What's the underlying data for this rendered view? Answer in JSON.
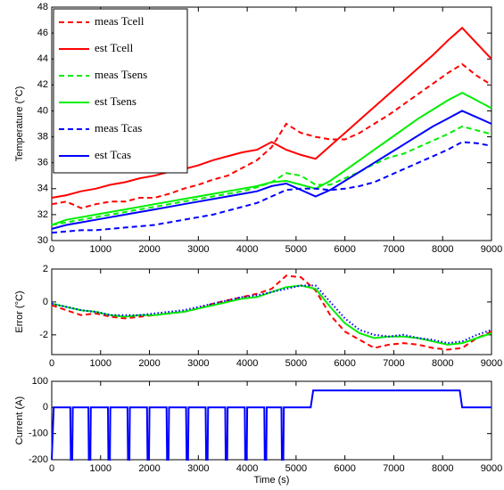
{
  "chart_data": [
    {
      "type": "line",
      "ylabel": "Temperature (°C)",
      "x": [
        0,
        300,
        600,
        900,
        1200,
        1500,
        1800,
        2100,
        2400,
        2700,
        3000,
        3300,
        3600,
        3900,
        4200,
        4500,
        4800,
        5100,
        5400,
        5700,
        6000,
        6300,
        6600,
        6900,
        7200,
        7500,
        7800,
        8100,
        8400,
        8700,
        9000
      ],
      "xlim": [
        0,
        9000
      ],
      "xticks": [
        0,
        1000,
        2000,
        3000,
        4000,
        5000,
        6000,
        7000,
        8000,
        9000
      ],
      "ylim": [
        30,
        48
      ],
      "yticks": [
        30,
        32,
        34,
        36,
        38,
        40,
        42,
        44,
        46,
        48
      ],
      "legend": "upper left",
      "series": [
        {
          "name": "meas Tcell",
          "color": "#ff0000",
          "linestyle": "dashed",
          "values": [
            32.8,
            33.0,
            32.5,
            32.8,
            33.0,
            33.0,
            33.3,
            33.3,
            33.6,
            34.0,
            34.3,
            34.7,
            35.0,
            35.6,
            36.2,
            37.2,
            39.0,
            38.3,
            38.0,
            37.8,
            37.8,
            38.3,
            39.0,
            39.7,
            40.5,
            41.3,
            42.1,
            42.9,
            43.6,
            42.7,
            42.0
          ]
        },
        {
          "name": "est Tcell",
          "color": "#ff0000",
          "linestyle": "solid",
          "values": [
            33.3,
            33.5,
            33.8,
            34.0,
            34.3,
            34.5,
            34.8,
            35.0,
            35.3,
            35.5,
            35.8,
            36.2,
            36.5,
            36.8,
            37.0,
            37.6,
            37.0,
            36.6,
            36.3,
            37.3,
            38.3,
            39.3,
            40.3,
            41.3,
            42.3,
            43.3,
            44.3,
            45.4,
            46.4,
            45.2,
            44.0
          ]
        },
        {
          "name": "meas Tsens",
          "color": "#00ee00",
          "linestyle": "dashed",
          "values": [
            31.2,
            31.4,
            31.6,
            31.8,
            32.0,
            32.2,
            32.4,
            32.6,
            32.8,
            33.0,
            33.2,
            33.4,
            33.6,
            33.8,
            34.1,
            34.5,
            35.2,
            35.0,
            34.3,
            34.3,
            34.8,
            35.3,
            35.9,
            36.4,
            36.7,
            37.2,
            37.7,
            38.2,
            38.8,
            38.5,
            38.2
          ]
        },
        {
          "name": "est Tsens",
          "color": "#00ee00",
          "linestyle": "solid",
          "values": [
            31.2,
            31.6,
            31.8,
            32.0,
            32.2,
            32.4,
            32.6,
            32.8,
            33.0,
            33.2,
            33.4,
            33.6,
            33.8,
            34.0,
            34.2,
            34.5,
            34.6,
            34.3,
            34.0,
            34.6,
            35.4,
            36.2,
            37.0,
            37.8,
            38.6,
            39.4,
            40.1,
            40.8,
            41.4,
            40.8,
            40.2
          ]
        },
        {
          "name": "meas Tcas",
          "color": "#0000ff",
          "linestyle": "dashed",
          "values": [
            30.6,
            30.7,
            30.8,
            30.8,
            30.9,
            31.0,
            31.1,
            31.2,
            31.4,
            31.6,
            31.8,
            32.0,
            32.3,
            32.6,
            32.9,
            33.4,
            33.9,
            34.0,
            34.0,
            33.9,
            34.0,
            34.2,
            34.5,
            35.0,
            35.5,
            36.0,
            36.5,
            37.0,
            37.6,
            37.5,
            37.3
          ]
        },
        {
          "name": "est Tcas",
          "color": "#0000ff",
          "linestyle": "solid",
          "values": [
            30.9,
            31.2,
            31.4,
            31.6,
            31.8,
            32.0,
            32.2,
            32.4,
            32.6,
            32.8,
            33.0,
            33.2,
            33.4,
            33.6,
            33.8,
            34.2,
            34.4,
            33.9,
            33.4,
            33.9,
            34.6,
            35.3,
            36.0,
            36.7,
            37.4,
            38.1,
            38.8,
            39.4,
            40.0,
            39.5,
            39.0
          ]
        }
      ]
    },
    {
      "type": "line",
      "ylabel": "Error (°C)",
      "x": [
        0,
        300,
        600,
        900,
        1200,
        1500,
        1800,
        2100,
        2400,
        2700,
        3000,
        3300,
        3600,
        3900,
        4200,
        4500,
        4800,
        5100,
        5400,
        5700,
        6000,
        6300,
        6600,
        6900,
        7200,
        7500,
        7800,
        8100,
        8400,
        8700,
        9000
      ],
      "xlim": [
        0,
        9000
      ],
      "xticks": [
        0,
        1000,
        2000,
        3000,
        4000,
        5000,
        6000,
        7000,
        8000,
        9000
      ],
      "ylim": [
        -3.2,
        2
      ],
      "yticks": [
        -2,
        0,
        2
      ],
      "series": [
        {
          "color": "#ff0000",
          "linestyle": "dashed",
          "values": [
            -0.2,
            -0.5,
            -0.8,
            -0.7,
            -0.9,
            -1.0,
            -0.9,
            -0.8,
            -0.7,
            -0.6,
            -0.4,
            -0.1,
            0.1,
            0.3,
            0.5,
            0.8,
            1.6,
            1.5,
            0.7,
            -0.8,
            -1.8,
            -2.3,
            -2.8,
            -2.6,
            -2.5,
            -2.6,
            -2.8,
            -2.9,
            -2.8,
            -2.2,
            -1.8
          ]
        },
        {
          "color": "#00ee00",
          "linestyle": "solid",
          "values": [
            -0.1,
            -0.3,
            -0.5,
            -0.6,
            -0.8,
            -0.9,
            -0.8,
            -0.8,
            -0.7,
            -0.6,
            -0.4,
            -0.2,
            0,
            0.2,
            0.3,
            0.6,
            0.9,
            1.0,
            0.8,
            -0.3,
            -1.3,
            -1.9,
            -2.2,
            -2.1,
            -2.1,
            -2.2,
            -2.4,
            -2.6,
            -2.5,
            -2.2,
            -1.9
          ]
        },
        {
          "color": "#0000ff",
          "linestyle": "dotted",
          "values": [
            -0.1,
            -0.3,
            -0.5,
            -0.6,
            -0.8,
            -0.8,
            -0.8,
            -0.7,
            -0.6,
            -0.5,
            -0.3,
            -0.1,
            0.1,
            0.3,
            0.4,
            0.6,
            0.8,
            1.0,
            1.0,
            0,
            -1.0,
            -1.7,
            -2.0,
            -2.1,
            -2.0,
            -2.2,
            -2.3,
            -2.5,
            -2.4,
            -2.0,
            -1.7
          ]
        }
      ]
    },
    {
      "type": "line",
      "ylabel": "Current (A)",
      "xlabel": "Time (s)",
      "x": [
        0,
        40,
        380,
        390,
        420,
        430,
        750,
        760,
        790,
        800,
        1150,
        1160,
        1190,
        1200,
        1550,
        1560,
        1590,
        1600,
        1950,
        1960,
        1990,
        2000,
        2350,
        2360,
        2390,
        2400,
        2750,
        2760,
        2790,
        2800,
        3150,
        3160,
        3190,
        3200,
        3550,
        3560,
        3590,
        3600,
        3950,
        3960,
        3990,
        4000,
        4350,
        4360,
        4390,
        4400,
        4700,
        4710,
        4740,
        4750,
        5300,
        5350,
        8350,
        8400,
        9000
      ],
      "xlim": [
        0,
        9000
      ],
      "xticks": [
        0,
        1000,
        2000,
        3000,
        4000,
        5000,
        6000,
        7000,
        8000,
        9000
      ],
      "ylim": [
        -200,
        100
      ],
      "yticks": [
        -200,
        -100,
        0,
        100
      ],
      "series": [
        {
          "color": "#0000ff",
          "linestyle": "solid",
          "values": [
            -200,
            0,
            0,
            -200,
            -200,
            0,
            0,
            -200,
            -200,
            0,
            0,
            -200,
            -200,
            0,
            0,
            -200,
            -200,
            0,
            0,
            -200,
            -200,
            0,
            0,
            -200,
            -200,
            0,
            0,
            -200,
            -200,
            0,
            0,
            -200,
            -200,
            0,
            0,
            -200,
            -200,
            0,
            0,
            -200,
            -200,
            0,
            0,
            -200,
            -200,
            0,
            0,
            -200,
            -200,
            0,
            0,
            65,
            65,
            0,
            0
          ]
        }
      ]
    }
  ]
}
